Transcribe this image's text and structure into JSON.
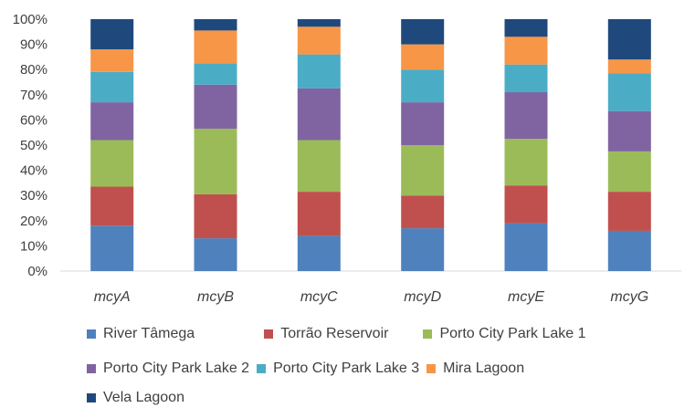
{
  "chart_data": {
    "type": "bar",
    "stacked": true,
    "categories": [
      "mcyA",
      "mcyB",
      "mcyC",
      "mcyD",
      "mcyE",
      "mcyG"
    ],
    "yticks": [
      "0%",
      "10%",
      "20%",
      "30%",
      "40%",
      "50%",
      "60%",
      "70%",
      "80%",
      "90%",
      "100%"
    ],
    "ylim": [
      0,
      100
    ],
    "xlabel": "",
    "ylabel": "",
    "legend_position": "bottom",
    "series": [
      {
        "name": "River Tâmega",
        "color": "#4F81BD",
        "values": [
          18,
          13,
          14,
          17,
          19,
          16
        ]
      },
      {
        "name": "Torrão Reservoir",
        "color": "#C0504D",
        "values": [
          15.5,
          17.5,
          17.5,
          13,
          15,
          15.5
        ]
      },
      {
        "name": "Porto City Park Lake 1",
        "color": "#9BBB59",
        "values": [
          18.5,
          26,
          20.5,
          20,
          18.5,
          16
        ]
      },
      {
        "name": "Porto City Park Lake 2",
        "color": "#8064A2",
        "values": [
          15,
          17.5,
          20.5,
          17,
          18.5,
          16
        ]
      },
      {
        "name": "Porto City Park Lake 3",
        "color": "#4BACC6",
        "values": [
          12,
          8.5,
          13.5,
          13,
          11,
          15
        ]
      },
      {
        "name": "Mira Lagoon",
        "color": "#F79646",
        "values": [
          9,
          13,
          11,
          10,
          11,
          5.5
        ]
      },
      {
        "name": "Vela Lagoon",
        "color": "#1F497D",
        "values": [
          12,
          4.5,
          3,
          10,
          7,
          16
        ]
      }
    ]
  }
}
